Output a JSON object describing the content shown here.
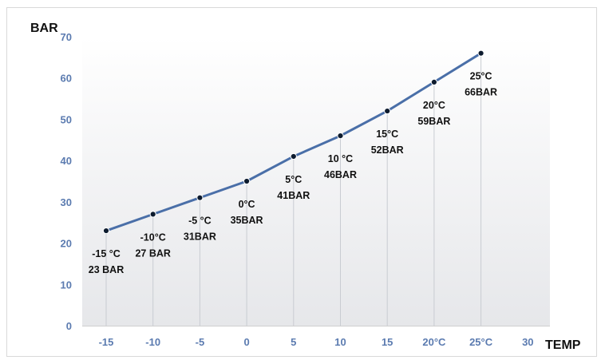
{
  "chart_data": {
    "type": "line",
    "xlabel": "TEMP",
    "ylabel": "BAR",
    "ylim": [
      0,
      70
    ],
    "yticks": [
      0,
      10,
      20,
      30,
      40,
      50,
      60,
      70
    ],
    "xticks": [
      {
        "x": -15,
        "label": "-15"
      },
      {
        "x": -10,
        "label": "-10"
      },
      {
        "x": -5,
        "label": "-5"
      },
      {
        "x": 0,
        "label": "0"
      },
      {
        "x": 5,
        "label": "5"
      },
      {
        "x": 10,
        "label": "10"
      },
      {
        "x": 15,
        "label": "15"
      },
      {
        "x": 20,
        "label": "20°C"
      },
      {
        "x": 25,
        "label": "25°C"
      },
      {
        "x": 30,
        "label": "30"
      }
    ],
    "series": [
      {
        "points": [
          {
            "x": -15,
            "y": 23,
            "label1": "-15 °C",
            "label2": "23 BAR"
          },
          {
            "x": -10,
            "y": 27,
            "label1": "-10°C",
            "label2": "27 BAR"
          },
          {
            "x": -5,
            "y": 31,
            "label1": "-5 °C",
            "label2": "31BAR"
          },
          {
            "x": 0,
            "y": 35,
            "label1": "0°C",
            "label2": "35BAR"
          },
          {
            "x": 5,
            "y": 41,
            "label1": "5°C",
            "label2": "41BAR"
          },
          {
            "x": 10,
            "y": 46,
            "label1": "10 °C",
            "label2": "46BAR"
          },
          {
            "x": 15,
            "y": 52,
            "label1": "15°C",
            "label2": "52BAR"
          },
          {
            "x": 20,
            "y": 59,
            "label1": "20°C",
            "label2": "59BAR"
          },
          {
            "x": 25,
            "y": 66,
            "label1": "25°C",
            "label2": "66BAR"
          }
        ]
      }
    ],
    "line_color": "#4a6fa8",
    "marker_color": "#0d1b2e",
    "grid": false
  }
}
